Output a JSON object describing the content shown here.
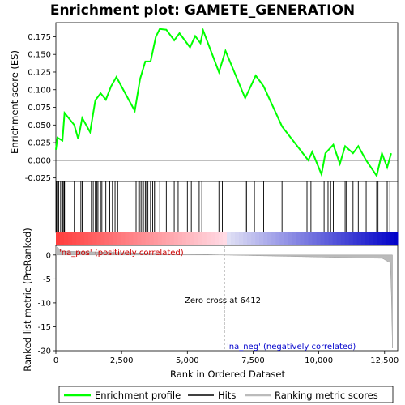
{
  "chart_data": {
    "type": "line",
    "title": "Enrichment plot: GAMETE_GENERATION",
    "panels": {
      "enrichment": {
        "ylabel": "Enrichment score (ES)",
        "ylim": [
          -0.03,
          0.195
        ],
        "yticks": [
          -0.025,
          0.0,
          0.025,
          0.05,
          0.075,
          0.1,
          0.125,
          0.15,
          0.175
        ],
        "ytick_labels": [
          "-0.025",
          "0.000",
          "0.025",
          "0.050",
          "0.075",
          "0.100",
          "0.125",
          "0.150",
          "0.175"
        ],
        "series": {
          "name": "Enrichment profile",
          "color": "#00ff00",
          "x": [
            0,
            60,
            250,
            330,
            700,
            850,
            1000,
            1300,
            1500,
            1700,
            1900,
            2100,
            2300,
            3000,
            3200,
            3400,
            3600,
            3800,
            3950,
            4200,
            4500,
            4700,
            5100,
            5300,
            5500,
            5600,
            6200,
            6450,
            7200,
            7600,
            7900,
            8600,
            9600,
            9750,
            10100,
            10250,
            10550,
            10800,
            11000,
            11300,
            11500,
            11800,
            12200,
            12400,
            12600,
            12750
          ],
          "y": [
            0.015,
            0.032,
            0.028,
            0.067,
            0.05,
            0.03,
            0.06,
            0.04,
            0.085,
            0.095,
            0.086,
            0.105,
            0.118,
            0.07,
            0.115,
            0.14,
            0.14,
            0.175,
            0.186,
            0.185,
            0.17,
            0.18,
            0.16,
            0.176,
            0.166,
            0.184,
            0.125,
            0.155,
            0.088,
            0.12,
            0.105,
            0.048,
            0.0,
            0.012,
            -0.02,
            0.01,
            0.022,
            -0.005,
            0.02,
            0.01,
            0.02,
            0.0,
            -0.022,
            0.01,
            -0.01,
            0.01
          ]
        }
      },
      "hits": {
        "name": "Hits",
        "positions": [
          20,
          60,
          110,
          180,
          240,
          270,
          310,
          330,
          700,
          950,
          1000,
          1030,
          1350,
          1420,
          1500,
          1560,
          1600,
          1700,
          1750,
          1900,
          2050,
          2150,
          2250,
          2350,
          3050,
          3150,
          3200,
          3260,
          3330,
          3400,
          3450,
          3500,
          3600,
          3680,
          3750,
          3800,
          3950,
          4200,
          4500,
          4650,
          5000,
          5150,
          5450,
          5550,
          6200,
          6330,
          7200,
          7250,
          7550,
          7900,
          8600,
          9550,
          9700,
          10200,
          10350,
          10450,
          10550,
          11000,
          11050,
          11300,
          11500,
          11800,
          12200,
          12250,
          12600,
          12700
        ]
      },
      "ranked": {
        "ylabel": "Ranked list metric (PreRanked)",
        "ylim": [
          -20,
          2
        ],
        "yticks": [
          0,
          -5,
          -10,
          -15,
          -20
        ],
        "ytick_labels": [
          "0",
          "-5",
          "-10",
          "-15",
          "-20"
        ],
        "xlabel": "Rank in Ordered Dataset",
        "xlim": [
          0,
          13000
        ],
        "xticks": [
          0,
          2500,
          5000,
          7500,
          10000,
          12500
        ],
        "xtick_labels": [
          "0",
          "2,500",
          "5,000",
          "7,500",
          "10,000",
          "12,500"
        ],
        "zero_cross": 6412,
        "zero_cross_label": "Zero cross at 6412",
        "pos_label": "'na_pos' (positively correlated)",
        "neg_label": "'na_neg' (negatively correlated)",
        "series_name": "Ranking metric scores",
        "n_total": 12800
      }
    },
    "legend": [
      "Enrichment profile",
      "Hits",
      "Ranking metric scores"
    ],
    "colors": {
      "profile": "#00ff00",
      "hits": "#000000",
      "metric": "#bbbbbb",
      "pos_label": "#cc0000",
      "neg_label": "#0000cc",
      "zero_line": "#aaaaaa"
    }
  }
}
